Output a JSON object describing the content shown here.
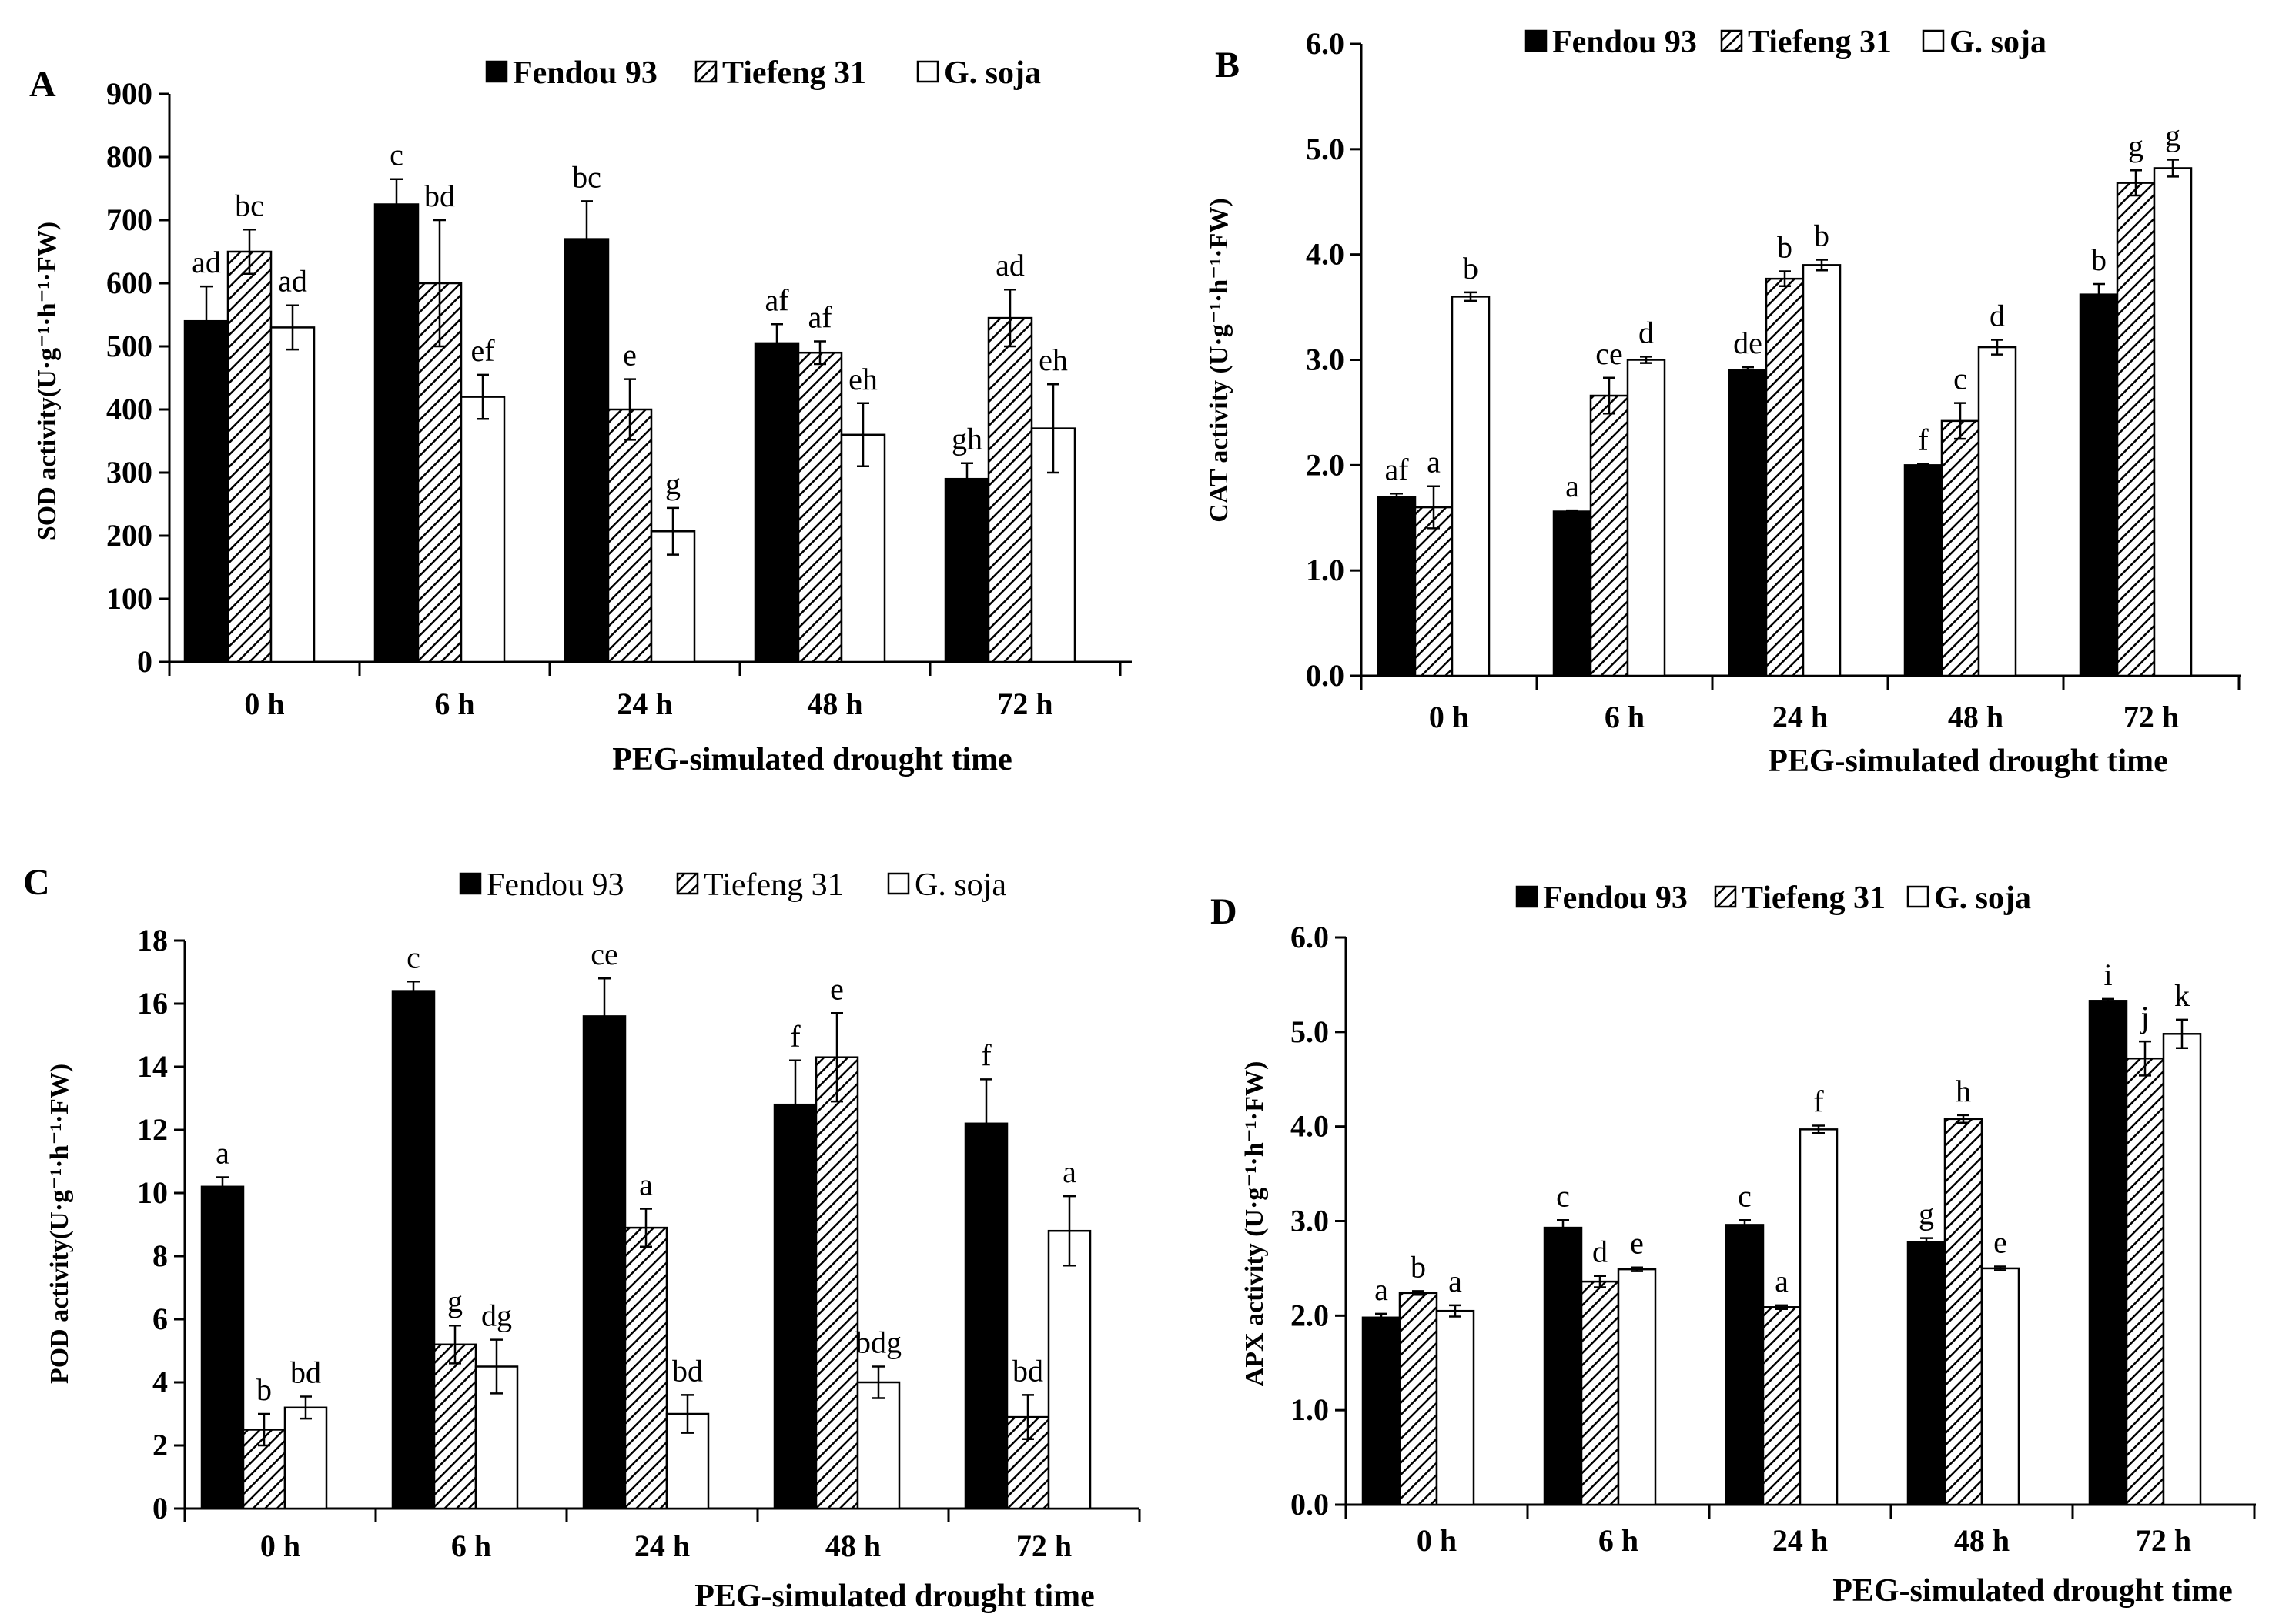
{
  "chart_data": [
    {
      "panel_label": "A",
      "type": "bar",
      "categories": [
        "0 h",
        "6 h",
        "24 h",
        "48 h",
        "72 h"
      ],
      "series": [
        {
          "name": "Fendou 93",
          "values": [
            540,
            725,
            670,
            505,
            290
          ],
          "errors": [
            55,
            40,
            60,
            30,
            25
          ],
          "letters": [
            "ad",
            "c",
            "bc",
            "af",
            "gh"
          ]
        },
        {
          "name": "Tiefeng 31",
          "values": [
            650,
            600,
            400,
            490,
            545
          ],
          "errors": [
            35,
            100,
            48,
            18,
            45
          ],
          "letters": [
            "bc",
            "bd",
            "e",
            "af",
            "ad"
          ]
        },
        {
          "name": "G. soja",
          "values": [
            530,
            420,
            207,
            360,
            370
          ],
          "errors": [
            35,
            35,
            37,
            50,
            70
          ],
          "letters": [
            "ad",
            "ef",
            "g",
            "eh",
            "eh"
          ]
        }
      ],
      "yticks": [
        "0",
        "100",
        "200",
        "300",
        "400",
        "500",
        "600",
        "700",
        "800",
        "900"
      ],
      "ylim": [
        0,
        900
      ],
      "ylabel": "SOD activity(U·g⁻¹·h⁻¹·FW)",
      "xlabel": "PEG-simulated drought time",
      "legend_bold": true
    },
    {
      "panel_label": "B",
      "type": "bar",
      "categories": [
        "0 h",
        "6 h",
        "24 h",
        "48 h",
        "72 h"
      ],
      "series": [
        {
          "name": "Fendou 93",
          "values": [
            1.7,
            1.56,
            2.9,
            2.0,
            3.62
          ],
          "errors": [
            0.03,
            0.01,
            0.03,
            0.01,
            0.1
          ],
          "letters": [
            "af",
            "a",
            "de",
            "f",
            "b"
          ]
        },
        {
          "name": "Tiefeng 31",
          "values": [
            1.6,
            2.66,
            3.77,
            2.42,
            4.68
          ],
          "errors": [
            0.2,
            0.17,
            0.07,
            0.17,
            0.12
          ],
          "letters": [
            "a",
            "ce",
            "b",
            "c",
            "g"
          ]
        },
        {
          "name": "G. soja",
          "values": [
            3.6,
            3.0,
            3.9,
            3.12,
            4.82
          ],
          "errors": [
            0.04,
            0.03,
            0.05,
            0.07,
            0.08
          ],
          "letters": [
            "b",
            "d",
            "b",
            "d",
            "g"
          ]
        }
      ],
      "yticks": [
        "0.0",
        "1.0",
        "2.0",
        "3.0",
        "4.0",
        "5.0",
        "6.0"
      ],
      "ylim": [
        0,
        6
      ],
      "ylabel": "CAT activity (U·g⁻¹·h⁻¹·FW)",
      "xlabel": "PEG-simulated drought time",
      "legend_bold": true
    },
    {
      "panel_label": "C",
      "type": "bar",
      "categories": [
        "0 h",
        "6 h",
        "24 h",
        "48 h",
        "72 h"
      ],
      "series": [
        {
          "name": "Fendou 93",
          "values": [
            10.2,
            16.4,
            15.6,
            12.8,
            12.2
          ],
          "errors": [
            0.3,
            0.3,
            1.2,
            1.4,
            1.4
          ],
          "letters": [
            "a",
            "c",
            "ce",
            "f",
            "f"
          ]
        },
        {
          "name": "Tiefeng 31",
          "values": [
            2.5,
            5.2,
            8.9,
            14.3,
            2.9
          ],
          "errors": [
            0.5,
            0.6,
            0.6,
            1.4,
            0.7
          ],
          "letters": [
            "b",
            "g",
            "a",
            "e",
            "bd"
          ]
        },
        {
          "name": "G. soja",
          "values": [
            3.2,
            4.5,
            3.0,
            4.0,
            8.8
          ],
          "errors": [
            0.35,
            0.85,
            0.6,
            0.5,
            1.1
          ],
          "letters": [
            "bd",
            "dg",
            "bd",
            "bdg",
            "a"
          ]
        }
      ],
      "yticks": [
        "0",
        "2",
        "4",
        "6",
        "8",
        "10",
        "12",
        "14",
        "16",
        "18"
      ],
      "ylim": [
        0,
        18
      ],
      "ylabel": "POD activity(U·g⁻¹·h⁻¹·FW)",
      "xlabel": "PEG-simulated drought time",
      "legend_bold": false
    },
    {
      "panel_label": "D",
      "type": "bar",
      "categories": [
        "0 h",
        "6 h",
        "24 h",
        "48 h",
        "72 h"
      ],
      "series": [
        {
          "name": "Fendou 93",
          "values": [
            1.98,
            2.93,
            2.96,
            2.78,
            5.33
          ],
          "errors": [
            0.04,
            0.08,
            0.05,
            0.04,
            0.02
          ],
          "letters": [
            "a",
            "c",
            "c",
            "g",
            "i"
          ]
        },
        {
          "name": "Tiefeng 31",
          "values": [
            2.24,
            2.36,
            2.09,
            4.08,
            4.72
          ],
          "errors": [
            0.02,
            0.06,
            0.02,
            0.04,
            0.18
          ],
          "letters": [
            "b",
            "d",
            "a",
            "h",
            "j"
          ]
        },
        {
          "name": "G. soja",
          "values": [
            2.05,
            2.49,
            3.97,
            2.5,
            4.98
          ],
          "errors": [
            0.06,
            0.02,
            0.04,
            0.02,
            0.15
          ],
          "letters": [
            "a",
            "e",
            "f",
            "e",
            "k"
          ]
        }
      ],
      "yticks": [
        "0.0",
        "1.0",
        "2.0",
        "3.0",
        "4.0",
        "5.0",
        "6.0"
      ],
      "ylim": [
        0,
        6
      ],
      "ylabel": "APX activity (U·g⁻¹·h⁻¹·FW)",
      "xlabel": "PEG-simulated drought time",
      "legend_bold": true
    }
  ],
  "colors": {
    "fendou": "#000000",
    "tiefeng_stroke": "#000000",
    "soja": "#ffffff",
    "axis": "#000000"
  }
}
